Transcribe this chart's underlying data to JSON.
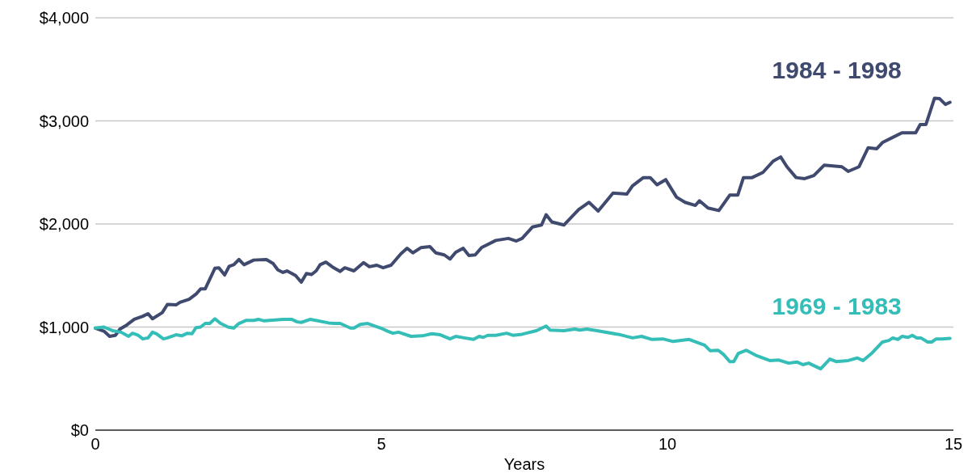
{
  "chart_data": {
    "type": "line",
    "xlabel": "Years",
    "xlim": [
      0,
      15
    ],
    "xticks": [
      0,
      5,
      10,
      15
    ],
    "ylim": [
      0,
      4000
    ],
    "yticks": [
      {
        "value": 0,
        "label": "$0"
      },
      {
        "value": 1000,
        "label": "$1,000"
      },
      {
        "value": 2000,
        "label": "$2,000"
      },
      {
        "value": 3000,
        "label": "$3,000"
      },
      {
        "value": 4000,
        "label": "$4,000"
      }
    ],
    "grid": "y",
    "legend": false,
    "marker": "none",
    "line_style": "solid",
    "series": [
      {
        "name": "1984 - 1998",
        "color": "#3f4a6e",
        "x": [
          0,
          0.15,
          0.25,
          0.35,
          0.43,
          0.55,
          0.68,
          0.83,
          0.92,
          1.0,
          1.17,
          1.26,
          1.41,
          1.48,
          1.64,
          1.77,
          1.84,
          1.92,
          2.09,
          2.16,
          2.26,
          2.34,
          2.42,
          2.51,
          2.6,
          2.77,
          2.99,
          3.11,
          3.19,
          3.28,
          3.35,
          3.5,
          3.6,
          3.69,
          3.78,
          3.86,
          3.93,
          4.03,
          4.14,
          4.28,
          4.36,
          4.52,
          4.69,
          4.79,
          4.92,
          5.03,
          5.17,
          5.34,
          5.45,
          5.55,
          5.69,
          5.85,
          5.95,
          6.1,
          6.2,
          6.3,
          6.43,
          6.53,
          6.64,
          6.75,
          7.0,
          7.22,
          7.36,
          7.46,
          7.64,
          7.8,
          7.88,
          7.98,
          8.19,
          8.45,
          8.63,
          8.79,
          9.05,
          9.29,
          9.39,
          9.58,
          9.7,
          9.82,
          9.97,
          10.16,
          10.31,
          10.49,
          10.56,
          10.71,
          10.9,
          11.09,
          11.23,
          11.33,
          11.48,
          11.67,
          11.85,
          11.98,
          12.09,
          12.25,
          12.4,
          12.56,
          12.74,
          13.05,
          13.16,
          13.35,
          13.51,
          13.66,
          13.76,
          13.94,
          14.1,
          14.34,
          14.42,
          14.52,
          14.67,
          14.76,
          14.86,
          14.94
        ],
        "values": [
          990,
          960,
          910,
          920,
          980,
          1020,
          1075,
          1105,
          1130,
          1080,
          1140,
          1220,
          1215,
          1240,
          1270,
          1325,
          1370,
          1370,
          1570,
          1575,
          1505,
          1590,
          1605,
          1655,
          1605,
          1650,
          1655,
          1615,
          1555,
          1530,
          1545,
          1500,
          1435,
          1520,
          1510,
          1545,
          1605,
          1630,
          1585,
          1540,
          1575,
          1545,
          1625,
          1585,
          1600,
          1575,
          1600,
          1710,
          1765,
          1720,
          1770,
          1780,
          1720,
          1700,
          1660,
          1725,
          1765,
          1695,
          1700,
          1770,
          1840,
          1860,
          1835,
          1860,
          1970,
          1990,
          2090,
          2020,
          1990,
          2140,
          2210,
          2125,
          2300,
          2290,
          2370,
          2450,
          2450,
          2380,
          2430,
          2260,
          2210,
          2180,
          2225,
          2155,
          2130,
          2280,
          2280,
          2450,
          2450,
          2500,
          2610,
          2650,
          2555,
          2450,
          2440,
          2470,
          2570,
          2555,
          2510,
          2555,
          2740,
          2730,
          2790,
          2840,
          2885,
          2885,
          2965,
          2965,
          3220,
          3215,
          3160,
          3180
        ]
      },
      {
        "name": "1969 - 1983",
        "color": "#35beb8",
        "x": [
          0,
          0.15,
          0.3,
          0.45,
          0.58,
          0.65,
          0.75,
          0.83,
          0.92,
          1.0,
          1.07,
          1.19,
          1.26,
          1.41,
          1.51,
          1.61,
          1.69,
          1.76,
          1.84,
          1.92,
          2.0,
          2.09,
          2.19,
          2.32,
          2.42,
          2.51,
          2.64,
          2.77,
          2.85,
          2.95,
          3.28,
          3.43,
          3.53,
          3.6,
          3.76,
          4.08,
          4.18,
          4.28,
          4.46,
          4.52,
          4.63,
          4.76,
          4.99,
          5.11,
          5.2,
          5.3,
          5.52,
          5.72,
          5.88,
          6.03,
          6.2,
          6.3,
          6.45,
          6.61,
          6.71,
          6.78,
          6.86,
          7.0,
          7.19,
          7.3,
          7.46,
          7.71,
          7.88,
          7.95,
          8.19,
          8.38,
          8.47,
          8.59,
          8.77,
          9.18,
          9.39,
          9.55,
          9.73,
          9.92,
          10.1,
          10.38,
          10.65,
          10.75,
          10.89,
          10.99,
          11.09,
          11.16,
          11.24,
          11.38,
          11.57,
          11.79,
          11.95,
          12.12,
          12.27,
          12.37,
          12.47,
          12.64,
          12.68,
          12.84,
          12.95,
          13.16,
          13.32,
          13.42,
          13.57,
          13.76,
          13.87,
          13.94,
          14.03,
          14.1,
          14.21,
          14.28,
          14.36,
          14.43,
          14.55,
          14.62,
          14.7,
          14.8,
          14.94
        ],
        "values": [
          990,
          1000,
          965,
          950,
          910,
          940,
          920,
          885,
          895,
          950,
          935,
          885,
          895,
          925,
          915,
          940,
          935,
          995,
          1000,
          1035,
          1035,
          1080,
          1035,
          1000,
          990,
          1035,
          1065,
          1065,
          1075,
          1060,
          1075,
          1075,
          1050,
          1045,
          1075,
          1040,
          1035,
          1035,
          990,
          990,
          1025,
          1035,
          990,
          960,
          940,
          950,
          910,
          915,
          935,
          925,
          885,
          910,
          895,
          880,
          910,
          900,
          920,
          920,
          940,
          920,
          930,
          965,
          1010,
          970,
          965,
          980,
          970,
          980,
          965,
          925,
          895,
          910,
          880,
          885,
          860,
          880,
          825,
          770,
          775,
          730,
          665,
          665,
          745,
          775,
          720,
          675,
          680,
          650,
          660,
          635,
          650,
          605,
          595,
          690,
          665,
          675,
          700,
          675,
          745,
          855,
          870,
          895,
          880,
          910,
          900,
          920,
          895,
          895,
          855,
          855,
          885,
          885,
          890
        ]
      }
    ]
  }
}
